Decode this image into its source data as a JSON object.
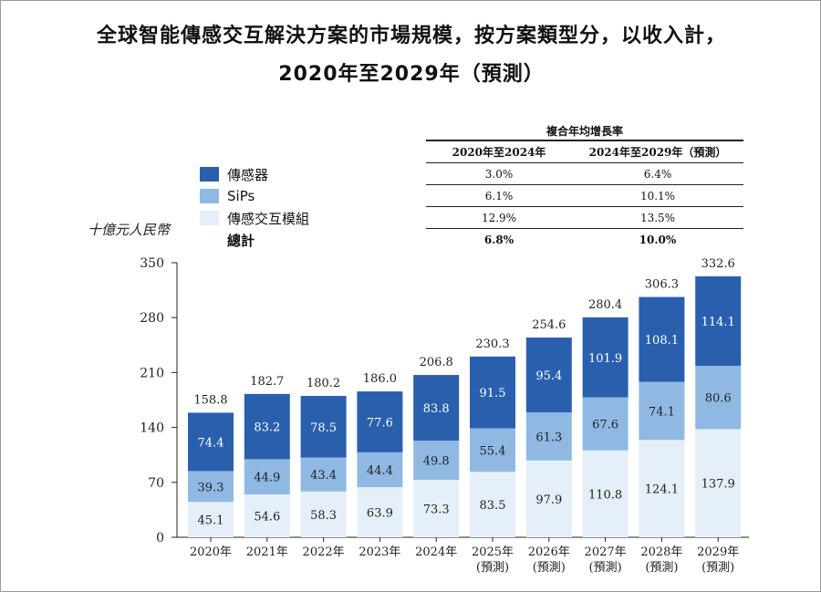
{
  "title_line1": "全球智能傳感交互解決方案的市場規模，按方案類型分，以收入計，",
  "title_line2": "2020年至2029年（預測）",
  "unit_label": "十億元人民幣",
  "legend": [
    {
      "label": "傳感器",
      "color": "#2a5fae"
    },
    {
      "label": "SiPs",
      "color": "#8fb9e3"
    },
    {
      "label": "傳感交互模組",
      "color": "#e5eff9"
    },
    {
      "label": "總計",
      "color": ""
    }
  ],
  "cagr_table": {
    "title": "複合年均增長率",
    "headers": [
      "2020年至2024年",
      "2024年至2029年（預測）"
    ],
    "rows": [
      [
        "3.0%",
        "6.4%"
      ],
      [
        "6.1%",
        "10.1%"
      ],
      [
        "12.9%",
        "13.5%"
      ],
      [
        "6.8%",
        "10.0%"
      ]
    ]
  },
  "chart_data": {
    "type": "bar",
    "stacked": true,
    "title": "全球智能傳感交互解決方案的市場規模，按方案類型分，以收入計，2020年至2029年（預測）",
    "ylabel": "十億元人民幣",
    "ylim": [
      0,
      350
    ],
    "yticks": [
      0,
      70,
      140,
      210,
      280,
      350
    ],
    "categories": [
      [
        "2020年"
      ],
      [
        "2021年"
      ],
      [
        "2022年"
      ],
      [
        "2023年"
      ],
      [
        "2024年"
      ],
      [
        "2025年",
        "(預測)"
      ],
      [
        "2026年",
        "(預測)"
      ],
      [
        "2027年",
        "(預測)"
      ],
      [
        "2028年",
        "(預測)"
      ],
      [
        "2029年",
        "(預測)"
      ]
    ],
    "series": [
      {
        "name": "傳感交互模組",
        "color": "#e5eff9",
        "label_color": "#222",
        "values": [
          45.1,
          54.6,
          58.3,
          63.9,
          73.3,
          83.5,
          97.9,
          110.8,
          124.1,
          137.9
        ]
      },
      {
        "name": "SiPs",
        "color": "#8fb9e3",
        "label_color": "#222",
        "values": [
          39.3,
          44.9,
          43.4,
          44.4,
          49.8,
          55.4,
          61.3,
          67.6,
          74.1,
          80.6
        ]
      },
      {
        "name": "傳感器",
        "color": "#2a5fae",
        "label_color": "#ffffff",
        "values": [
          74.4,
          83.2,
          78.5,
          77.6,
          83.8,
          91.5,
          95.4,
          101.9,
          108.1,
          114.1
        ]
      }
    ],
    "totals": [
      158.8,
      182.7,
      180.2,
      186.0,
      206.8,
      230.3,
      254.6,
      280.4,
      306.3,
      332.6
    ]
  }
}
